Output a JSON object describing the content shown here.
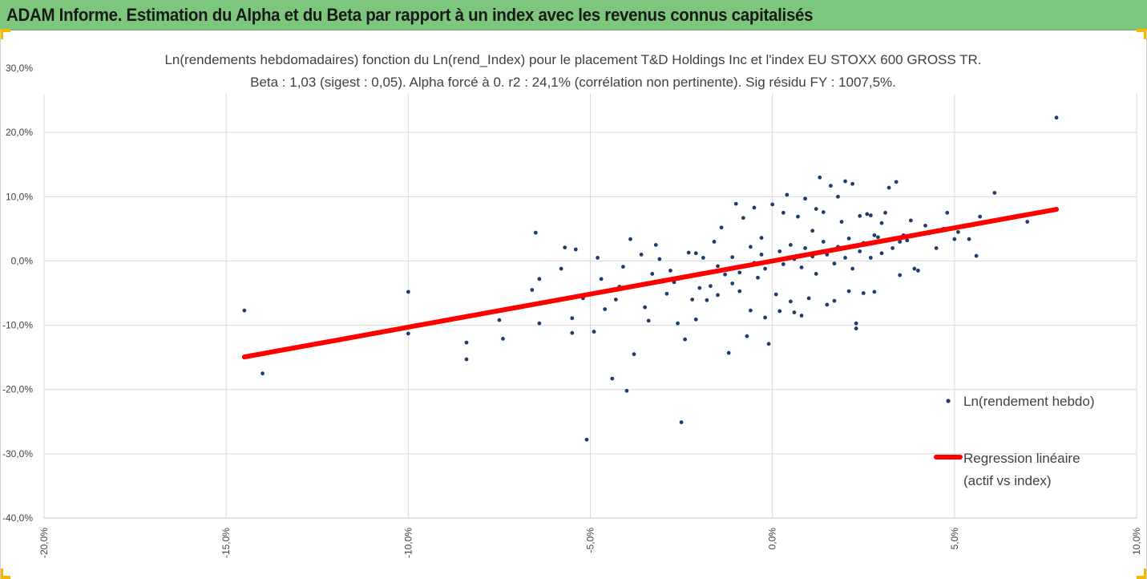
{
  "header": {
    "title": "ADAM Informe. Estimation du Alpha et du Beta par rapport à un index avec les revenus connus capitalisés"
  },
  "colors": {
    "header_bg": "#7dc67d",
    "accent": "#f5b800",
    "points": "#1f3d6b",
    "regression": "#ff0000",
    "grid": "#d9d9d9",
    "text": "#404040"
  },
  "chart_data": {
    "type": "scatter",
    "title_line1": "Ln(rendements hebdomadaires) fonction du Ln(rend_Index) pour le placement T&D Holdings Inc et l'index EU STOXX 600 GROSS TR.",
    "title_line2": "Beta : 1,03 (sigest : 0,05). Alpha forcé à 0. r2 : 24,1% (corrélation non pertinente). Sig résidu FY : 1007,5%.",
    "xlim": [
      -0.2,
      0.1
    ],
    "ylim": [
      -0.4,
      0.3
    ],
    "x_ticks": [
      {
        "value": -0.2,
        "label": "-20,0%"
      },
      {
        "value": -0.15,
        "label": "-15,0%"
      },
      {
        "value": -0.1,
        "label": "-10,0%"
      },
      {
        "value": -0.05,
        "label": "-5,0%"
      },
      {
        "value": 0.0,
        "label": "0,0%"
      },
      {
        "value": 0.05,
        "label": "5,0%"
      },
      {
        "value": 0.1,
        "label": "10,0%"
      }
    ],
    "y_ticks": [
      {
        "value": 0.3,
        "label": "30,0%"
      },
      {
        "value": 0.2,
        "label": "20,0%"
      },
      {
        "value": 0.1,
        "label": "10,0%"
      },
      {
        "value": 0.0,
        "label": "0,0%"
      },
      {
        "value": -0.1,
        "label": "-10,0%"
      },
      {
        "value": -0.2,
        "label": "-20,0%"
      },
      {
        "value": -0.3,
        "label": "-30,0%"
      },
      {
        "value": -0.4,
        "label": "-40,0%"
      }
    ],
    "grid": true,
    "legend_position": "right",
    "series": [
      {
        "name": "Ln(rendement hebdo)",
        "kind": "scatter",
        "points": [
          [
            -0.145,
            -0.077
          ],
          [
            -0.14,
            -0.175
          ],
          [
            -0.1,
            -0.048
          ],
          [
            -0.1,
            -0.113
          ],
          [
            -0.084,
            -0.127
          ],
          [
            -0.084,
            -0.153
          ],
          [
            -0.075,
            -0.092
          ],
          [
            -0.074,
            -0.121
          ],
          [
            -0.065,
            0.044
          ],
          [
            -0.066,
            -0.045
          ],
          [
            -0.064,
            -0.097
          ],
          [
            -0.064,
            -0.028
          ],
          [
            -0.057,
            0.021
          ],
          [
            -0.055,
            -0.089
          ],
          [
            -0.055,
            -0.112
          ],
          [
            -0.054,
            0.018
          ],
          [
            -0.052,
            -0.058
          ],
          [
            -0.051,
            -0.278
          ],
          [
            -0.049,
            -0.11
          ],
          [
            -0.048,
            0.005
          ],
          [
            -0.046,
            -0.075
          ],
          [
            -0.044,
            -0.183
          ],
          [
            -0.043,
            -0.06
          ],
          [
            -0.042,
            -0.04
          ],
          [
            -0.04,
            -0.202
          ],
          [
            -0.039,
            0.034
          ],
          [
            -0.038,
            -0.145
          ],
          [
            -0.036,
            0.01
          ],
          [
            -0.035,
            -0.072
          ],
          [
            -0.034,
            -0.093
          ],
          [
            -0.032,
            0.025
          ],
          [
            -0.03,
            -0.03
          ],
          [
            -0.029,
            -0.051
          ],
          [
            -0.027,
            -0.033
          ],
          [
            -0.026,
            -0.097
          ],
          [
            -0.025,
            -0.251
          ],
          [
            -0.024,
            -0.122
          ],
          [
            -0.023,
            0.013
          ],
          [
            -0.022,
            -0.06
          ],
          [
            -0.021,
            -0.091
          ],
          [
            -0.02,
            -0.042
          ],
          [
            -0.019,
            0.005
          ],
          [
            -0.018,
            -0.061
          ],
          [
            -0.017,
            -0.039
          ],
          [
            -0.016,
            0.03
          ],
          [
            -0.015,
            -0.053
          ],
          [
            -0.014,
            0.052
          ],
          [
            -0.013,
            -0.021
          ],
          [
            -0.012,
            -0.143
          ],
          [
            -0.011,
            -0.035
          ],
          [
            -0.01,
            0.089
          ],
          [
            -0.009,
            -0.047
          ],
          [
            -0.008,
            0.067
          ],
          [
            -0.007,
            -0.117
          ],
          [
            -0.006,
            -0.077
          ],
          [
            -0.005,
            0.083
          ],
          [
            -0.004,
            -0.026
          ],
          [
            -0.003,
            0.036
          ],
          [
            -0.002,
            -0.088
          ],
          [
            -0.001,
            -0.129
          ],
          [
            0.0,
            0.088
          ],
          [
            0.001,
            -0.052
          ],
          [
            0.002,
            -0.078
          ],
          [
            0.003,
            0.075
          ],
          [
            0.004,
            0.103
          ],
          [
            0.005,
            -0.063
          ],
          [
            0.006,
            -0.08
          ],
          [
            0.007,
            0.069
          ],
          [
            0.008,
            -0.085
          ],
          [
            0.009,
            0.097
          ],
          [
            0.01,
            -0.058
          ],
          [
            0.011,
            0.047
          ],
          [
            0.012,
            0.081
          ],
          [
            0.013,
            0.13
          ],
          [
            0.014,
            0.076
          ],
          [
            0.015,
            -0.068
          ],
          [
            0.016,
            0.117
          ],
          [
            0.017,
            -0.062
          ],
          [
            0.018,
            0.1
          ],
          [
            0.019,
            0.061
          ],
          [
            0.02,
            0.124
          ],
          [
            0.021,
            -0.047
          ],
          [
            0.022,
            0.12
          ],
          [
            0.023,
            -0.097
          ],
          [
            0.023,
            -0.105
          ],
          [
            0.024,
            0.07
          ],
          [
            0.025,
            -0.05
          ],
          [
            0.026,
            0.073
          ],
          [
            0.027,
            0.071
          ],
          [
            0.028,
            -0.048
          ],
          [
            0.029,
            0.037
          ],
          [
            0.03,
            0.059
          ],
          [
            0.031,
            0.075
          ],
          [
            0.032,
            0.114
          ],
          [
            0.034,
            0.123
          ],
          [
            0.035,
            -0.022
          ],
          [
            0.036,
            0.04
          ],
          [
            0.037,
            0.032
          ],
          [
            0.038,
            0.063
          ],
          [
            0.039,
            -0.012
          ],
          [
            0.04,
            -0.015
          ],
          [
            0.042,
            0.055
          ],
          [
            0.043,
            0.043
          ],
          [
            0.045,
            0.02
          ],
          [
            0.047,
            0.05
          ],
          [
            0.048,
            0.075
          ],
          [
            0.05,
            0.034
          ],
          [
            0.051,
            0.045
          ],
          [
            0.053,
            0.055
          ],
          [
            0.054,
            0.034
          ],
          [
            0.056,
            0.008
          ],
          [
            0.057,
            0.069
          ],
          [
            0.061,
            0.106
          ],
          [
            0.07,
            0.061
          ],
          [
            0.078,
            0.223
          ],
          [
            -0.058,
            -0.012
          ],
          [
            -0.047,
            -0.028
          ],
          [
            -0.041,
            -0.009
          ],
          [
            -0.033,
            -0.02
          ],
          [
            -0.031,
            0.003
          ],
          [
            -0.028,
            -0.015
          ],
          [
            -0.021,
            0.012
          ],
          [
            -0.015,
            -0.008
          ],
          [
            -0.011,
            0.006
          ],
          [
            -0.009,
            -0.018
          ],
          [
            -0.006,
            0.022
          ],
          [
            -0.005,
            -0.003
          ],
          [
            -0.003,
            0.01
          ],
          [
            -0.002,
            -0.012
          ],
          [
            0.002,
            0.015
          ],
          [
            0.003,
            -0.005
          ],
          [
            0.005,
            0.025
          ],
          [
            0.006,
            0.003
          ],
          [
            0.008,
            -0.01
          ],
          [
            0.009,
            0.02
          ],
          [
            0.011,
            0.007
          ],
          [
            0.012,
            -0.02
          ],
          [
            0.014,
            0.03
          ],
          [
            0.015,
            0.01
          ],
          [
            0.017,
            -0.004
          ],
          [
            0.018,
            0.022
          ],
          [
            0.02,
            0.005
          ],
          [
            0.021,
            0.035
          ],
          [
            0.022,
            -0.012
          ],
          [
            0.024,
            0.015
          ],
          [
            0.025,
            0.028
          ],
          [
            0.027,
            0.005
          ],
          [
            0.028,
            0.04
          ],
          [
            0.03,
            0.012
          ],
          [
            0.033,
            0.02
          ],
          [
            0.035,
            0.03
          ]
        ]
      },
      {
        "name": "Regression linéaire (actif vs index)",
        "kind": "line",
        "slope": 1.03,
        "intercept": 0,
        "x_range": [
          -0.145,
          0.078
        ]
      }
    ],
    "legend": {
      "scatter_label": "Ln(rendement hebdo)",
      "line_label_1": "Regression linéaire",
      "line_label_2": "(actif vs index)"
    }
  }
}
